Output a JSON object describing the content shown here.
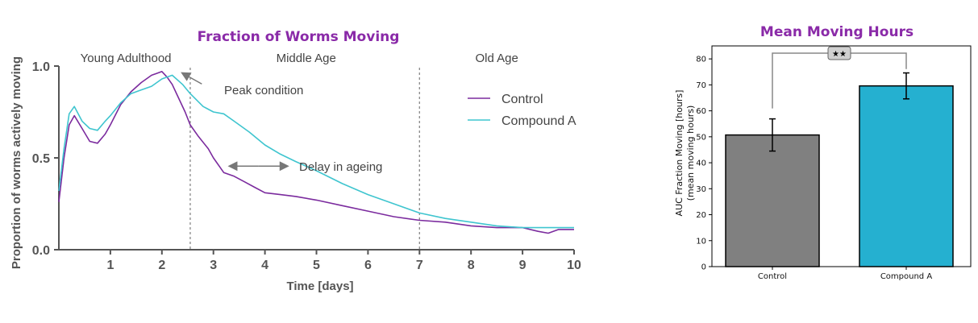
{
  "chart_data": [
    {
      "type": "line",
      "title": "Fraction of Worms Moving",
      "xlabel": "Time [days]",
      "ylabel": "Proportion of worms actively moving",
      "xlim": [
        0,
        10
      ],
      "ylim": [
        0,
        1.0
      ],
      "xticks": [
        "1",
        "2",
        "3",
        "4",
        "5",
        "6",
        "7",
        "8",
        "9",
        "10"
      ],
      "yticks": [
        "0.0",
        "0.5",
        "1.0"
      ],
      "phases": [
        {
          "label": "Young Adulthood",
          "center": 1.3
        },
        {
          "label": "Middle Age",
          "center": 4.8
        },
        {
          "label": "Old Age",
          "center": 8.5
        }
      ],
      "dividers": [
        2.55,
        7.0
      ],
      "annotations": [
        {
          "label": "Peak condition",
          "arrow_from": [
            2.9,
            0.92
          ],
          "arrow_to": [
            2.25,
            0.96
          ]
        },
        {
          "label": "Delay in ageing",
          "arrow_from": [
            3.7,
            0.455
          ],
          "arrow_to": [
            3.2,
            0.455
          ],
          "arrow2_to": [
            4.55,
            0.455
          ]
        }
      ],
      "legend_position": "right",
      "series": [
        {
          "name": "Control",
          "color": "#7b2b9e",
          "x": [
            0.0,
            0.1,
            0.2,
            0.3,
            0.45,
            0.6,
            0.75,
            0.9,
            1.0,
            1.2,
            1.4,
            1.6,
            1.8,
            1.9,
            2.0,
            2.1,
            2.2,
            2.3,
            2.45,
            2.55,
            2.7,
            2.9,
            3.0,
            3.2,
            3.4,
            3.6,
            3.8,
            4.0,
            4.3,
            4.6,
            5.0,
            5.5,
            6.0,
            6.5,
            7.0,
            7.5,
            8.0,
            8.5,
            9.0,
            9.3,
            9.5,
            9.7,
            10.0
          ],
          "y": [
            0.26,
            0.5,
            0.68,
            0.73,
            0.66,
            0.59,
            0.58,
            0.63,
            0.68,
            0.79,
            0.86,
            0.91,
            0.95,
            0.96,
            0.97,
            0.94,
            0.9,
            0.84,
            0.75,
            0.68,
            0.62,
            0.55,
            0.5,
            0.42,
            0.4,
            0.37,
            0.34,
            0.31,
            0.3,
            0.29,
            0.27,
            0.24,
            0.21,
            0.18,
            0.16,
            0.15,
            0.13,
            0.12,
            0.12,
            0.1,
            0.09,
            0.11,
            0.11
          ]
        },
        {
          "name": "Compound A",
          "color": "#3fc5cf",
          "x": [
            0.0,
            0.1,
            0.2,
            0.3,
            0.45,
            0.6,
            0.75,
            0.9,
            1.0,
            1.2,
            1.4,
            1.6,
            1.8,
            2.0,
            2.2,
            2.4,
            2.55,
            2.8,
            3.0,
            3.2,
            3.4,
            3.7,
            4.0,
            4.3,
            4.6,
            5.0,
            5.5,
            6.0,
            6.5,
            7.0,
            7.5,
            8.0,
            8.5,
            9.0,
            9.5,
            10.0
          ],
          "y": [
            0.32,
            0.55,
            0.74,
            0.78,
            0.7,
            0.66,
            0.65,
            0.7,
            0.73,
            0.8,
            0.85,
            0.87,
            0.89,
            0.93,
            0.95,
            0.9,
            0.85,
            0.78,
            0.75,
            0.74,
            0.7,
            0.64,
            0.57,
            0.52,
            0.48,
            0.43,
            0.36,
            0.3,
            0.25,
            0.2,
            0.17,
            0.15,
            0.13,
            0.12,
            0.12,
            0.12
          ]
        }
      ]
    },
    {
      "type": "bar",
      "title": "Mean Moving Hours",
      "ylabel": "AUC Fraction Moving [hours]",
      "ylabel2": "(mean moving hours)",
      "categories": [
        "Control",
        "Compound A"
      ],
      "values": [
        50.7,
        69.6
      ],
      "errors": [
        6.2,
        5.0
      ],
      "colors": [
        "#808080",
        "#25b0d0"
      ],
      "ylim": [
        0,
        85
      ],
      "yticks": [
        "0",
        "10",
        "20",
        "30",
        "40",
        "50",
        "60",
        "70",
        "80"
      ],
      "significance": "★★"
    }
  ]
}
